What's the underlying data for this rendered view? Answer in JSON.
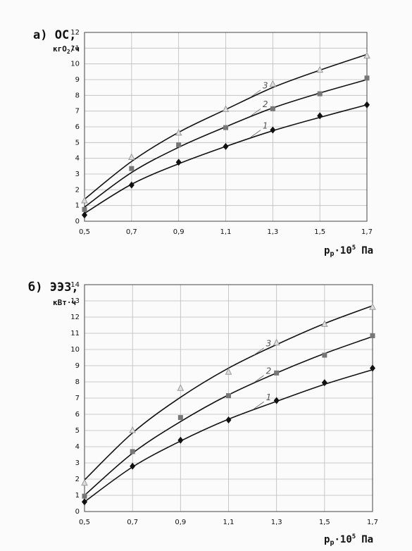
{
  "chart_data": [
    {
      "type": "line",
      "title": "а) ОС,",
      "y_label": [
        "кгО",
        "2",
        "/ч"
      ],
      "x_label": [
        "p",
        "р",
        "·10",
        "5",
        "Па"
      ],
      "x": [
        0.5,
        0.7,
        0.9,
        1.1,
        1.3,
        1.5,
        1.7
      ],
      "xlim": [
        0.5,
        1.7
      ],
      "xticks": [
        {
          "value": 0.5,
          "label": "0,5"
        },
        {
          "value": 0.7,
          "label": "0,7"
        },
        {
          "value": 0.9,
          "label": "0,9"
        },
        {
          "value": 1.1,
          "label": "1,1"
        },
        {
          "value": 1.3,
          "label": "1,3"
        },
        {
          "value": 1.5,
          "label": "1,5"
        },
        {
          "value": 1.7,
          "label": "1,7"
        }
      ],
      "ylim": [
        0,
        12
      ],
      "yticks": [
        0,
        1,
        2,
        3,
        4,
        5,
        6,
        7,
        8,
        9,
        10,
        11,
        12
      ],
      "grid": true,
      "series": [
        {
          "name": "1",
          "marker": "diamond",
          "color": "#111111",
          "values": [
            0.4,
            2.3,
            3.75,
            4.75,
            5.8,
            6.7,
            7.4
          ],
          "fit": [
            0.5,
            2.35,
            3.65,
            4.75,
            5.75,
            6.6,
            7.4
          ]
        },
        {
          "name": "2",
          "marker": "square",
          "color": "#777777",
          "values": [
            0.75,
            3.35,
            4.85,
            5.95,
            7.15,
            8.1,
            9.1
          ],
          "fit": [
            0.9,
            3.1,
            4.7,
            6.0,
            7.2,
            8.15,
            9.0
          ]
        },
        {
          "name": "3",
          "marker": "triangle",
          "color": "#999999",
          "values": [
            1.3,
            4.05,
            5.6,
            7.1,
            8.7,
            9.6,
            10.5
          ],
          "fit": [
            1.4,
            3.8,
            5.65,
            7.1,
            8.5,
            9.6,
            10.6
          ]
        }
      ]
    },
    {
      "type": "line",
      "title": "б) ЭЭЗ,",
      "y_label": [
        "кВт·ч"
      ],
      "x_label": [
        "p",
        "р",
        "·10",
        "5",
        "Па"
      ],
      "x": [
        0.5,
        0.7,
        0.9,
        1.1,
        1.3,
        1.5,
        1.7
      ],
      "xlim": [
        0.5,
        1.7
      ],
      "xticks": [
        {
          "value": 0.5,
          "label": "0,5"
        },
        {
          "value": 0.7,
          "label": "0,7"
        },
        {
          "value": 0.9,
          "label": "0,9"
        },
        {
          "value": 1.1,
          "label": "1,1"
        },
        {
          "value": 1.3,
          "label": "1,3"
        },
        {
          "value": 1.5,
          "label": "1,5"
        },
        {
          "value": 1.7,
          "label": "1,7"
        }
      ],
      "ylim": [
        0,
        14
      ],
      "yticks": [
        0,
        1,
        2,
        3,
        4,
        5,
        6,
        7,
        8,
        9,
        10,
        11,
        12,
        13,
        14
      ],
      "grid": true,
      "series": [
        {
          "name": "1",
          "marker": "diamond",
          "color": "#111111",
          "values": [
            0.6,
            2.8,
            4.4,
            5.65,
            6.85,
            7.95,
            8.85
          ],
          "fit": [
            0.6,
            2.75,
            4.35,
            5.7,
            6.8,
            7.85,
            8.75
          ]
        },
        {
          "name": "2",
          "marker": "square",
          "color": "#777777",
          "values": [
            0.95,
            3.7,
            5.8,
            7.15,
            8.55,
            9.65,
            10.85
          ],
          "fit": [
            1.0,
            3.6,
            5.55,
            7.2,
            8.55,
            9.75,
            10.8
          ]
        },
        {
          "name": "3",
          "marker": "triangle",
          "color": "#999999",
          "values": [
            1.75,
            5.0,
            7.6,
            8.6,
            10.4,
            11.55,
            12.6
          ],
          "fit": [
            1.95,
            4.85,
            7.05,
            8.85,
            10.3,
            11.6,
            12.7
          ]
        }
      ]
    }
  ]
}
